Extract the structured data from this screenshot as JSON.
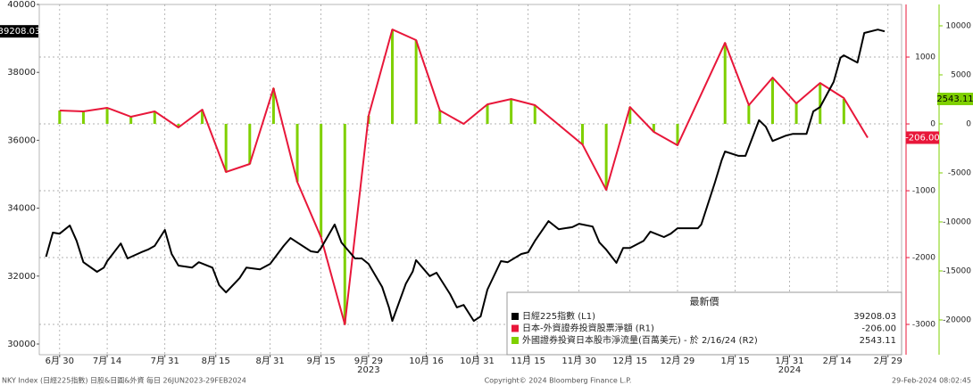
{
  "chart_data": {
    "type": "line",
    "xlim": [
      "2023-06-24",
      "2024-03-04"
    ],
    "xticks": [
      {
        "value": "2023-06-30",
        "label": "6月 30"
      },
      {
        "value": "2023-07-14",
        "label": "7月 14"
      },
      {
        "value": "2023-07-31",
        "label": "7月 31"
      },
      {
        "value": "2023-08-15",
        "label": "8月 15"
      },
      {
        "value": "2023-08-31",
        "label": "8月 31"
      },
      {
        "value": "2023-09-15",
        "label": "9月 15"
      },
      {
        "value": "2023-09-29",
        "label": "9月 29"
      },
      {
        "value": "2023-10-16",
        "label": "10月 16"
      },
      {
        "value": "2023-10-31",
        "label": "10月 31"
      },
      {
        "value": "2023-11-15",
        "label": "11月 15"
      },
      {
        "value": "2023-11-30",
        "label": "11月 30"
      },
      {
        "value": "2023-12-15",
        "label": "12月 15"
      },
      {
        "value": "2023-12-29",
        "label": "12月 29"
      },
      {
        "value": "2024-01-15",
        "label": "1月 15"
      },
      {
        "value": "2024-01-31",
        "label": "1月 31"
      },
      {
        "value": "2024-02-14",
        "label": "2月 14"
      },
      {
        "value": "2024-02-29",
        "label": "2月 29"
      }
    ],
    "year_labels": [
      {
        "value": "2023-09-29",
        "label": "2023"
      },
      {
        "value": "2024-01-31",
        "label": "2024"
      }
    ],
    "ylim": [
      29685,
      40000
    ],
    "yticks": [
      30000,
      32000,
      34000,
      36000,
      38000,
      40000
    ],
    "y2lim": [
      -3453,
      1787
    ],
    "y2ticks": [
      -3000,
      -2000,
      -1000,
      0,
      1000
    ],
    "y3lim": [
      -23545,
      12180
    ],
    "y3ticks": [
      -20000,
      -15000,
      -10000,
      -5000,
      0,
      5000,
      10000
    ],
    "grid": true,
    "legend_title": "最新價",
    "series": [
      {
        "name": "日經225指數 (L1)",
        "color": "#000000",
        "axis": "y",
        "type": "line",
        "latest_label": "39208.03",
        "x": [
          "2023-06-26",
          "2023-06-28",
          "2023-06-30",
          "2023-07-03",
          "2023-07-05",
          "2023-07-07",
          "2023-07-11",
          "2023-07-13",
          "2023-07-14",
          "2023-07-18",
          "2023-07-20",
          "2023-07-24",
          "2023-07-26",
          "2023-07-28",
          "2023-07-31",
          "2023-08-02",
          "2023-08-04",
          "2023-08-08",
          "2023-08-10",
          "2023-08-14",
          "2023-08-16",
          "2023-08-18",
          "2023-08-22",
          "2023-08-24",
          "2023-08-28",
          "2023-08-31",
          "2023-09-04",
          "2023-09-06",
          "2023-09-08",
          "2023-09-12",
          "2023-09-14",
          "2023-09-15",
          "2023-09-19",
          "2023-09-21",
          "2023-09-25",
          "2023-09-27",
          "2023-09-29",
          "2023-10-03",
          "2023-10-05",
          "2023-10-06",
          "2023-10-10",
          "2023-10-12",
          "2023-10-13",
          "2023-10-17",
          "2023-10-19",
          "2023-10-23",
          "2023-10-25",
          "2023-10-27",
          "2023-10-30",
          "2023-11-01",
          "2023-11-03",
          "2023-11-07",
          "2023-11-09",
          "2023-11-13",
          "2023-11-15",
          "2023-11-17",
          "2023-11-21",
          "2023-11-24",
          "2023-11-28",
          "2023-11-30",
          "2023-12-04",
          "2023-12-06",
          "2023-12-08",
          "2023-12-11",
          "2023-12-13",
          "2023-12-15",
          "2023-12-19",
          "2023-12-21",
          "2023-12-25",
          "2023-12-27",
          "2023-12-29",
          "2024-01-04",
          "2024-01-05",
          "2024-01-09",
          "2024-01-11",
          "2024-01-12",
          "2024-01-16",
          "2024-01-18",
          "2024-01-22",
          "2024-01-24",
          "2024-01-26",
          "2024-01-30",
          "2024-02-01",
          "2024-02-05",
          "2024-02-07",
          "2024-02-09",
          "2024-02-13",
          "2024-02-15",
          "2024-02-16",
          "2024-02-20",
          "2024-02-22",
          "2024-02-26",
          "2024-02-28"
        ],
        "values": [
          32570,
          33280,
          33250,
          33490,
          33040,
          32410,
          32125,
          32250,
          32440,
          32960,
          32520,
          32700,
          32780,
          32890,
          33360,
          32650,
          32310,
          32250,
          32410,
          32250,
          31730,
          31520,
          31940,
          32250,
          32200,
          32360,
          32890,
          33120,
          32990,
          32730,
          32700,
          32830,
          33520,
          32990,
          32520,
          32520,
          32360,
          31680,
          31080,
          30680,
          31780,
          32130,
          32470,
          32000,
          32100,
          31470,
          31080,
          31150,
          30680,
          30810,
          31600,
          32440,
          32410,
          32650,
          32700,
          33040,
          33620,
          33380,
          33440,
          33540,
          33460,
          32990,
          32780,
          32390,
          32830,
          32830,
          33040,
          33310,
          33150,
          33250,
          33410,
          33410,
          33520,
          34750,
          35410,
          35670,
          35540,
          35540,
          36590,
          36400,
          35980,
          36140,
          36190,
          36190,
          36850,
          36980,
          37720,
          38430,
          38500,
          38290,
          39160,
          39260,
          39208.03
        ]
      },
      {
        "name": "日本-外資證券投資股票淨額 (R1)",
        "color": "#e8173a",
        "axis": "y2",
        "type": "line",
        "latest_label": "-206.00",
        "x": [
          "2023-06-30",
          "2023-07-07",
          "2023-07-14",
          "2023-07-21",
          "2023-07-28",
          "2023-08-04",
          "2023-08-11",
          "2023-08-18",
          "2023-08-25",
          "2023-09-01",
          "2023-09-08",
          "2023-09-15",
          "2023-09-22",
          "2023-09-29",
          "2023-10-06",
          "2023-10-13",
          "2023-10-20",
          "2023-10-27",
          "2023-11-03",
          "2023-11-10",
          "2023-11-17",
          "2023-11-24",
          "2023-12-01",
          "2023-12-08",
          "2023-12-15",
          "2023-12-22",
          "2023-12-29",
          "2024-01-12",
          "2024-01-19",
          "2024-01-26",
          "2024-02-02",
          "2024-02-09",
          "2024-02-16",
          "2024-02-23"
        ],
        "values": [
          200,
          187,
          240,
          107,
          187,
          -53,
          213,
          -720,
          -600,
          533,
          -867,
          -1700,
          -3000,
          120,
          1413,
          1253,
          200,
          0,
          293,
          373,
          280,
          -13,
          -307,
          -987,
          253,
          -120,
          -320,
          1213,
          280,
          693,
          307,
          613,
          387,
          -206
        ]
      },
      {
        "name": "外國證券投資日本股市淨流量(百萬美元) - 於 2/16/24 (R2)",
        "color": "#7fd000",
        "axis": "y3",
        "type": "bar",
        "latest_label": "2543.11",
        "x": [
          "2023-06-30",
          "2023-07-07",
          "2023-07-14",
          "2023-07-21",
          "2023-07-28",
          "2023-08-04",
          "2023-08-11",
          "2023-08-18",
          "2023-08-25",
          "2023-09-01",
          "2023-09-08",
          "2023-09-15",
          "2023-09-22",
          "2023-09-29",
          "2023-10-06",
          "2023-10-13",
          "2023-10-20",
          "2023-10-27",
          "2023-11-03",
          "2023-11-10",
          "2023-11-17",
          "2023-11-24",
          "2023-12-01",
          "2023-12-08",
          "2023-12-15",
          "2023-12-22",
          "2023-12-29",
          "2024-01-12",
          "2024-01-19",
          "2024-01-26",
          "2024-02-02",
          "2024-02-09",
          "2024-02-16",
          "2024-02-23"
        ],
        "values": [
          1360,
          1270,
          1630,
          730,
          1270,
          -360,
          1450,
          -4900,
          -4080,
          3620,
          -5900,
          -11560,
          -20400,
          820,
          9600,
          8520,
          1360,
          0,
          1990,
          2540,
          1900,
          -90,
          -2090,
          -6710,
          1720,
          -820,
          -2180,
          8250,
          1900,
          4710,
          2090,
          4170,
          2543.11,
          null
        ]
      }
    ]
  },
  "footer": {
    "left": "NKY Index (日經225指數) 日股&日圓&外資  每日 26JUN2023-29FEB2024",
    "center": "Copyright© 2024 Bloomberg Finance L.P.",
    "right": "29-Feb-2024 08:02:45"
  }
}
